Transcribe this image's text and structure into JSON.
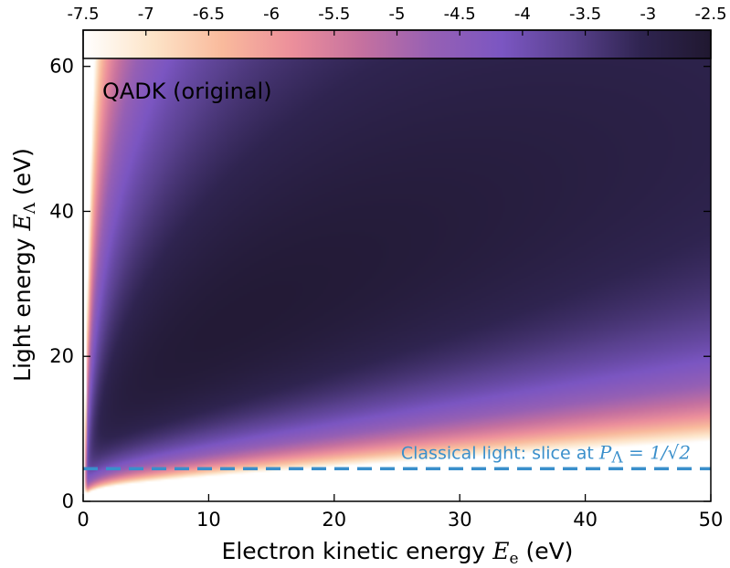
{
  "chart_data": {
    "type": "heatmap",
    "title": "",
    "annotation": "QADK (original)",
    "xlabel": {
      "prefix": "Electron kinetic energy ",
      "symbol": "E",
      "subscript": "e",
      "suffix": " (eV)"
    },
    "ylabel": {
      "prefix": "Light energy ",
      "symbol": "E",
      "subscript": "Λ",
      "suffix": " (eV)"
    },
    "xlim": [
      0,
      50
    ],
    "ylim": [
      0,
      65
    ],
    "xticks": [
      0,
      10,
      20,
      30,
      40,
      50
    ],
    "yticks": [
      0,
      20,
      40,
      60
    ],
    "xtick_labels": [
      "0",
      "10",
      "20",
      "30",
      "40",
      "50"
    ],
    "ytick_labels": [
      "0",
      "20",
      "40",
      "60"
    ],
    "colorbar": {
      "orientation": "horizontal",
      "placement": "top",
      "range": [
        -7.5,
        -2.5
      ],
      "ticks": [
        -7.5,
        -7,
        -6.5,
        -6,
        -5.5,
        -5,
        -4.5,
        -4,
        -3.5,
        -3,
        -2.5
      ],
      "tick_labels": [
        "-7.5",
        "-7",
        "-6.5",
        "-6",
        "-5.5",
        "-5",
        "-4.5",
        "-4",
        "-3.5",
        "-3",
        "-2.5"
      ],
      "colormap": [
        "#ffffff",
        "#fde4c8",
        "#f9ba9c",
        "#ec8f9b",
        "#c5719f",
        "#9660b4",
        "#7b56c2",
        "#59418e",
        "#2f2450",
        "#201830"
      ]
    },
    "peak": {
      "x": 13,
      "y": 25,
      "value": -2.6
    },
    "slice_line": {
      "y": 4.5,
      "style": "dashed",
      "color": "#3a8fcb",
      "label_text": "Classical light: slice at ",
      "label_math_symbol": "P",
      "label_math_subscript": "Λ",
      "label_math_rest": " = 1/√2"
    },
    "grid": false
  }
}
